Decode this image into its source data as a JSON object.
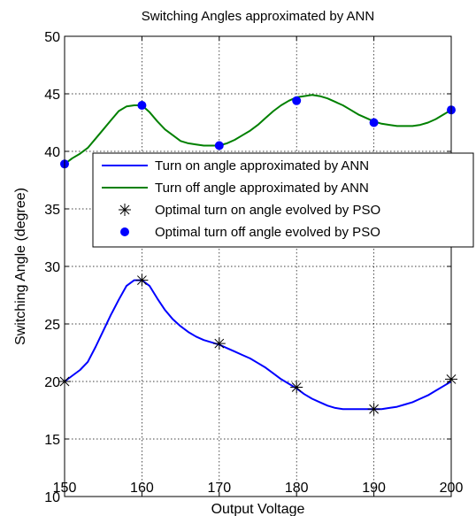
{
  "chart_data": {
    "type": "line",
    "title": "Switching Angles approximated by ANN",
    "xlabel": "Output Voltage",
    "ylabel": "Switching Angle (degree)",
    "xlim": [
      150,
      200
    ],
    "ylim": [
      10,
      50
    ],
    "xticks": [
      "150",
      "160",
      "170",
      "180",
      "190",
      "200"
    ],
    "yticks": [
      "10",
      "15",
      "20",
      "25",
      "30",
      "35",
      "40",
      "45",
      "50"
    ],
    "grid": true,
    "legend_position": "upper-right",
    "series": [
      {
        "name": "Turn on angle approximated by ANN",
        "kind": "line",
        "color": "#0000ff",
        "x": [
          150,
          151,
          152,
          153,
          154,
          155,
          156,
          157,
          158,
          159,
          160,
          161,
          162,
          163,
          164,
          165,
          166,
          167,
          168,
          169,
          170,
          171,
          172,
          173,
          174,
          175,
          176,
          177,
          178,
          179,
          180,
          181,
          182,
          183,
          184,
          185,
          186,
          187,
          188,
          189,
          190,
          191,
          192,
          193,
          194,
          195,
          196,
          197,
          198,
          199,
          200
        ],
        "y": [
          20.0,
          20.5,
          21.0,
          21.7,
          23.0,
          24.4,
          25.8,
          27.1,
          28.3,
          28.8,
          28.8,
          28.3,
          27.2,
          26.2,
          25.4,
          24.8,
          24.3,
          23.9,
          23.6,
          23.4,
          23.2,
          22.9,
          22.6,
          22.3,
          22.0,
          21.6,
          21.2,
          20.7,
          20.2,
          19.8,
          19.4,
          18.9,
          18.5,
          18.2,
          17.9,
          17.7,
          17.6,
          17.6,
          17.6,
          17.6,
          17.6,
          17.6,
          17.7,
          17.8,
          18.0,
          18.2,
          18.5,
          18.8,
          19.2,
          19.6,
          20.0
        ]
      },
      {
        "name": "Turn off angle approximated by ANN",
        "kind": "line",
        "color": "#008000",
        "x": [
          150,
          151,
          152,
          153,
          154,
          155,
          156,
          157,
          158,
          159,
          160,
          161,
          162,
          163,
          164,
          165,
          166,
          167,
          168,
          169,
          170,
          171,
          172,
          173,
          174,
          175,
          176,
          177,
          178,
          179,
          180,
          181,
          182,
          183,
          184,
          185,
          186,
          187,
          188,
          189,
          190,
          191,
          192,
          193,
          194,
          195,
          196,
          197,
          198,
          199,
          200
        ],
        "y": [
          38.9,
          39.4,
          39.8,
          40.3,
          41.1,
          41.9,
          42.7,
          43.5,
          43.9,
          44.0,
          44.0,
          43.4,
          42.6,
          41.9,
          41.4,
          40.9,
          40.7,
          40.6,
          40.5,
          40.5,
          40.5,
          40.7,
          41.0,
          41.4,
          41.8,
          42.3,
          42.9,
          43.5,
          44.0,
          44.4,
          44.7,
          44.8,
          44.9,
          44.8,
          44.6,
          44.3,
          44.0,
          43.6,
          43.2,
          42.9,
          42.6,
          42.4,
          42.3,
          42.2,
          42.2,
          42.2,
          42.3,
          42.5,
          42.8,
          43.2,
          43.6
        ]
      },
      {
        "name": "Optimal turn on angle evolved by PSO",
        "kind": "marker",
        "marker": "asterisk",
        "color": "#000000",
        "x": [
          150,
          160,
          170,
          180,
          190,
          200
        ],
        "y": [
          20.0,
          28.8,
          23.3,
          19.5,
          17.6,
          20.2
        ]
      },
      {
        "name": "Optimal turn off angle evolved by PSO",
        "kind": "marker",
        "marker": "dot",
        "color": "#0000ff",
        "x": [
          150,
          160,
          170,
          180,
          190,
          200
        ],
        "y": [
          38.9,
          44.0,
          40.5,
          44.4,
          42.5,
          43.6
        ]
      }
    ]
  }
}
